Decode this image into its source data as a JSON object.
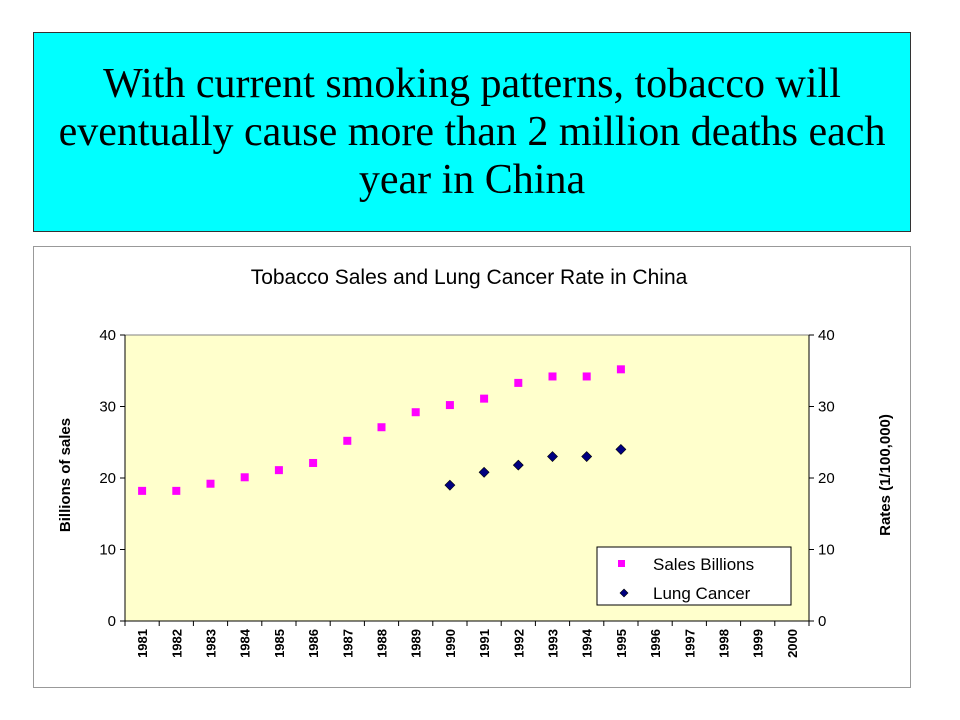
{
  "slide": {
    "title": "With current smoking patterns, tobacco will eventually cause more than 2 million deaths each year in China"
  },
  "chart_data": {
    "type": "scatter",
    "title": "Tobacco Sales and Lung Cancer Rate in China",
    "ylabel": "Billions of sales",
    "y2label": "Rates (1/100,000)",
    "ylim": [
      0,
      40
    ],
    "y2lim": [
      0,
      40
    ],
    "yticks": [
      0,
      10,
      20,
      30,
      40
    ],
    "plot_background": "#ffffcc",
    "legend_position": "lower-right",
    "categories": [
      "1981",
      "1982",
      "1983",
      "1984",
      "1985",
      "1986",
      "1987",
      "1988",
      "1989",
      "1990",
      "1991",
      "1992",
      "1993",
      "1994",
      "1995",
      "1996",
      "1997",
      "1998",
      "1999",
      "2000"
    ],
    "series": [
      {
        "name": "Sales Billions",
        "marker": "square",
        "color": "#ff00ff",
        "axis": "left",
        "values": [
          18.2,
          18.2,
          19.2,
          20.1,
          21.1,
          22.1,
          25.2,
          27.1,
          29.2,
          30.2,
          31.1,
          33.3,
          34.2,
          34.2,
          35.2,
          null,
          null,
          null,
          null,
          null
        ]
      },
      {
        "name": "Lung Cancer",
        "marker": "diamond",
        "color": "#000080",
        "axis": "right",
        "values": [
          null,
          null,
          null,
          null,
          null,
          null,
          null,
          null,
          null,
          19.0,
          20.8,
          21.8,
          23.0,
          23.0,
          24.0,
          null,
          null,
          null,
          null,
          null
        ]
      }
    ]
  }
}
